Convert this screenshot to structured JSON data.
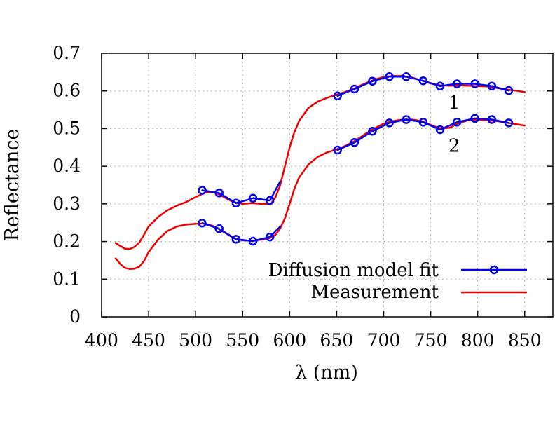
{
  "chart_data": {
    "type": "line",
    "title": "",
    "xlabel": "λ (nm)",
    "ylabel": "Reflectance",
    "xlim": [
      400,
      880
    ],
    "ylim": [
      0,
      0.7
    ],
    "xticks": [
      400,
      450,
      500,
      550,
      600,
      650,
      700,
      750,
      800,
      850
    ],
    "yticks": [
      0,
      0.1,
      0.2,
      0.3,
      0.4,
      0.5,
      0.6,
      0.7
    ],
    "xtick_labels": [
      "400",
      "450",
      "500",
      "550",
      "600",
      "650",
      "700",
      "750",
      "800",
      "850"
    ],
    "ytick_labels": [
      "0",
      "0.1",
      "0.2",
      "0.3",
      "0.4",
      "0.5",
      "0.6",
      "0.7"
    ],
    "grid": true,
    "legend_position": "bottom-right",
    "legend": [
      {
        "label": "Diffusion model fit",
        "color": "#0000ee",
        "marker": "circle"
      },
      {
        "label": "Measurement",
        "color": "#ee0000",
        "marker": "none"
      }
    ],
    "curve_labels": [
      {
        "text": "1",
        "x": 775,
        "y": 0.57
      },
      {
        "text": "2",
        "x": 775,
        "y": 0.455
      }
    ],
    "series": [
      {
        "curve": "1",
        "kind": "measurement",
        "color": "#ee0000",
        "x": [
          415,
          420,
          425,
          430,
          435,
          440,
          445,
          450,
          460,
          470,
          480,
          490,
          500,
          510,
          520,
          530,
          540,
          550,
          560,
          570,
          580,
          585,
          590,
          595,
          600,
          605,
          610,
          620,
          630,
          640,
          650,
          660,
          670,
          680,
          690,
          700,
          710,
          720,
          730,
          740,
          750,
          760,
          770,
          780,
          790,
          800,
          810,
          820,
          830,
          840,
          850
        ],
        "y": [
          0.196,
          0.188,
          0.181,
          0.18,
          0.186,
          0.197,
          0.218,
          0.24,
          0.265,
          0.283,
          0.295,
          0.305,
          0.318,
          0.33,
          0.332,
          0.318,
          0.305,
          0.3,
          0.302,
          0.3,
          0.3,
          0.318,
          0.35,
          0.4,
          0.45,
          0.49,
          0.52,
          0.555,
          0.572,
          0.582,
          0.59,
          0.598,
          0.608,
          0.62,
          0.63,
          0.637,
          0.64,
          0.64,
          0.636,
          0.628,
          0.62,
          0.615,
          0.614,
          0.615,
          0.614,
          0.613,
          0.612,
          0.608,
          0.604,
          0.601,
          0.597
        ]
      },
      {
        "curve": "2",
        "kind": "measurement",
        "color": "#ee0000",
        "x": [
          415,
          420,
          425,
          430,
          435,
          440,
          445,
          450,
          460,
          470,
          480,
          490,
          500,
          510,
          520,
          530,
          540,
          550,
          560,
          570,
          580,
          585,
          590,
          595,
          600,
          605,
          610,
          620,
          630,
          640,
          650,
          660,
          670,
          680,
          690,
          700,
          710,
          720,
          730,
          740,
          750,
          760,
          770,
          780,
          790,
          800,
          810,
          820,
          830,
          840,
          850
        ],
        "y": [
          0.155,
          0.14,
          0.13,
          0.127,
          0.128,
          0.133,
          0.148,
          0.172,
          0.205,
          0.228,
          0.24,
          0.245,
          0.247,
          0.248,
          0.24,
          0.225,
          0.21,
          0.203,
          0.202,
          0.205,
          0.21,
          0.218,
          0.235,
          0.262,
          0.3,
          0.34,
          0.37,
          0.405,
          0.425,
          0.437,
          0.445,
          0.455,
          0.468,
          0.485,
          0.5,
          0.513,
          0.52,
          0.524,
          0.524,
          0.52,
          0.51,
          0.5,
          0.502,
          0.515,
          0.522,
          0.524,
          0.522,
          0.52,
          0.516,
          0.512,
          0.508
        ]
      },
      {
        "curve": "1",
        "kind": "fit",
        "color": "#0000ee",
        "x": [
          507,
          525,
          543,
          561,
          579,
          590
        ],
        "y": [
          0.336,
          0.329,
          0.302,
          0.315,
          0.309,
          0.36
        ],
        "marker_count": 5
      },
      {
        "curve": "1",
        "kind": "fit",
        "color": "#0000ee",
        "x": [
          651,
          669,
          688,
          706,
          724,
          742,
          760,
          778,
          797,
          815,
          833
        ],
        "y": [
          0.587,
          0.605,
          0.626,
          0.638,
          0.638,
          0.627,
          0.613,
          0.619,
          0.619,
          0.613,
          0.601
        ],
        "marker_count": 11
      },
      {
        "curve": "2",
        "kind": "fit",
        "color": "#0000ee",
        "x": [
          507,
          525,
          543,
          561,
          579,
          590
        ],
        "y": [
          0.249,
          0.234,
          0.206,
          0.201,
          0.212,
          0.24
        ],
        "marker_count": 5
      },
      {
        "curve": "2",
        "kind": "fit",
        "color": "#0000ee",
        "x": [
          651,
          669,
          688,
          706,
          724,
          742,
          760,
          778,
          797,
          815,
          833
        ],
        "y": [
          0.443,
          0.463,
          0.493,
          0.515,
          0.524,
          0.517,
          0.497,
          0.517,
          0.527,
          0.524,
          0.515
        ],
        "marker_count": 11
      }
    ]
  }
}
